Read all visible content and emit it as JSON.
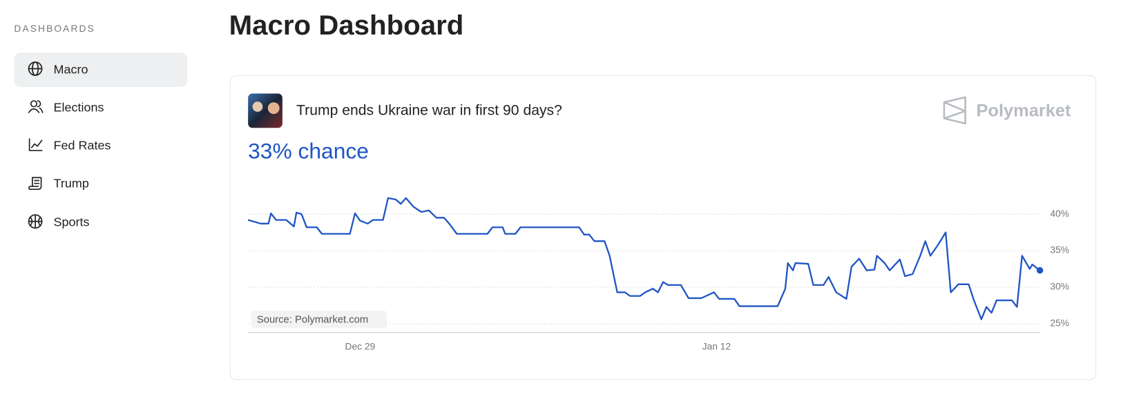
{
  "sidebar": {
    "heading": "DASHBOARDS",
    "items": [
      {
        "label": "Macro"
      },
      {
        "label": "Elections"
      },
      {
        "label": "Fed Rates"
      },
      {
        "label": "Trump"
      },
      {
        "label": "Sports"
      }
    ]
  },
  "header": {
    "title": "Macro Dashboard"
  },
  "chart_data": {
    "type": "line",
    "title": "Trump ends Ukraine war in first 90 days?",
    "headline": "33% chance",
    "brand": "Polymarket",
    "source": "Source: Polymarket.com",
    "series": [
      {
        "name": "Yes",
        "color": "#1f55c4",
        "x": [
          -4.4,
          -3.9,
          -3.6,
          -3.5,
          -3.3,
          -2.9,
          -2.6,
          -2.5,
          -2.3,
          -2.1,
          -1.7,
          -1.5,
          -0.4,
          -0.2,
          0.0,
          0.3,
          0.5,
          0.9,
          1.1,
          1.4,
          1.6,
          1.8,
          2.1,
          2.4,
          2.7,
          3.0,
          3.3,
          3.5,
          3.8,
          5.0,
          5.2,
          5.6,
          5.7,
          6.1,
          6.3,
          8.6,
          8.8,
          9.0,
          9.2,
          9.6,
          9.8,
          10.1,
          10.4,
          10.6,
          11.0,
          11.2,
          11.5,
          11.7,
          11.9,
          12.1,
          12.6,
          12.9,
          13.4,
          13.9,
          14.1,
          14.7,
          14.9,
          16.4,
          16.7,
          16.8,
          17.0,
          17.1,
          17.6,
          17.8,
          18.2,
          18.4,
          18.7,
          19.1,
          19.3,
          19.6,
          19.9,
          20.2,
          20.3,
          20.6,
          20.8,
          21.2,
          21.4,
          21.7,
          22.0,
          22.2,
          22.4,
          22.7,
          23.0,
          23.2,
          23.5,
          23.9,
          24.1,
          24.4,
          24.6,
          24.8,
          25.0,
          25.6,
          25.8,
          26.0,
          26.3,
          26.4,
          26.7
        ],
        "values": [
          39.2,
          38.7,
          38.7,
          40.1,
          39.2,
          39.2,
          38.3,
          40.2,
          40.0,
          38.2,
          38.2,
          37.3,
          37.3,
          40.1,
          39.1,
          38.7,
          39.2,
          39.2,
          42.2,
          42.0,
          41.4,
          42.2,
          41.0,
          40.3,
          40.5,
          39.5,
          39.5,
          38.7,
          37.3,
          37.3,
          38.2,
          38.2,
          37.3,
          37.3,
          38.2,
          38.2,
          37.2,
          37.2,
          36.3,
          36.3,
          34.3,
          29.3,
          29.3,
          28.8,
          28.8,
          29.3,
          29.8,
          29.3,
          30.7,
          30.3,
          30.3,
          28.5,
          28.5,
          29.3,
          28.4,
          28.4,
          27.4,
          27.4,
          29.8,
          33.3,
          32.3,
          33.3,
          33.2,
          30.3,
          30.3,
          31.4,
          29.3,
          28.4,
          32.8,
          33.9,
          32.3,
          32.4,
          34.3,
          33.3,
          32.3,
          33.8,
          31.5,
          31.8,
          34.3,
          36.3,
          34.3,
          35.8,
          37.5,
          29.3,
          30.4,
          30.4,
          28.3,
          25.6,
          27.3,
          26.5,
          28.2,
          28.2,
          27.3,
          34.3,
          32.5,
          33.1,
          32.3
        ]
      }
    ],
    "xlim": [
      -4.4,
      26.7
    ],
    "xticks": [
      {
        "value": 0,
        "label": "Dec 29"
      },
      {
        "value": 14,
        "label": "Jan 12"
      }
    ],
    "ylim": [
      23.8,
      42.3
    ],
    "yticks": [
      {
        "value": 25,
        "label": "25%"
      },
      {
        "value": 30,
        "label": "30%"
      },
      {
        "value": 35,
        "label": "35%"
      },
      {
        "value": 40,
        "label": "40%"
      }
    ],
    "grid": true
  }
}
